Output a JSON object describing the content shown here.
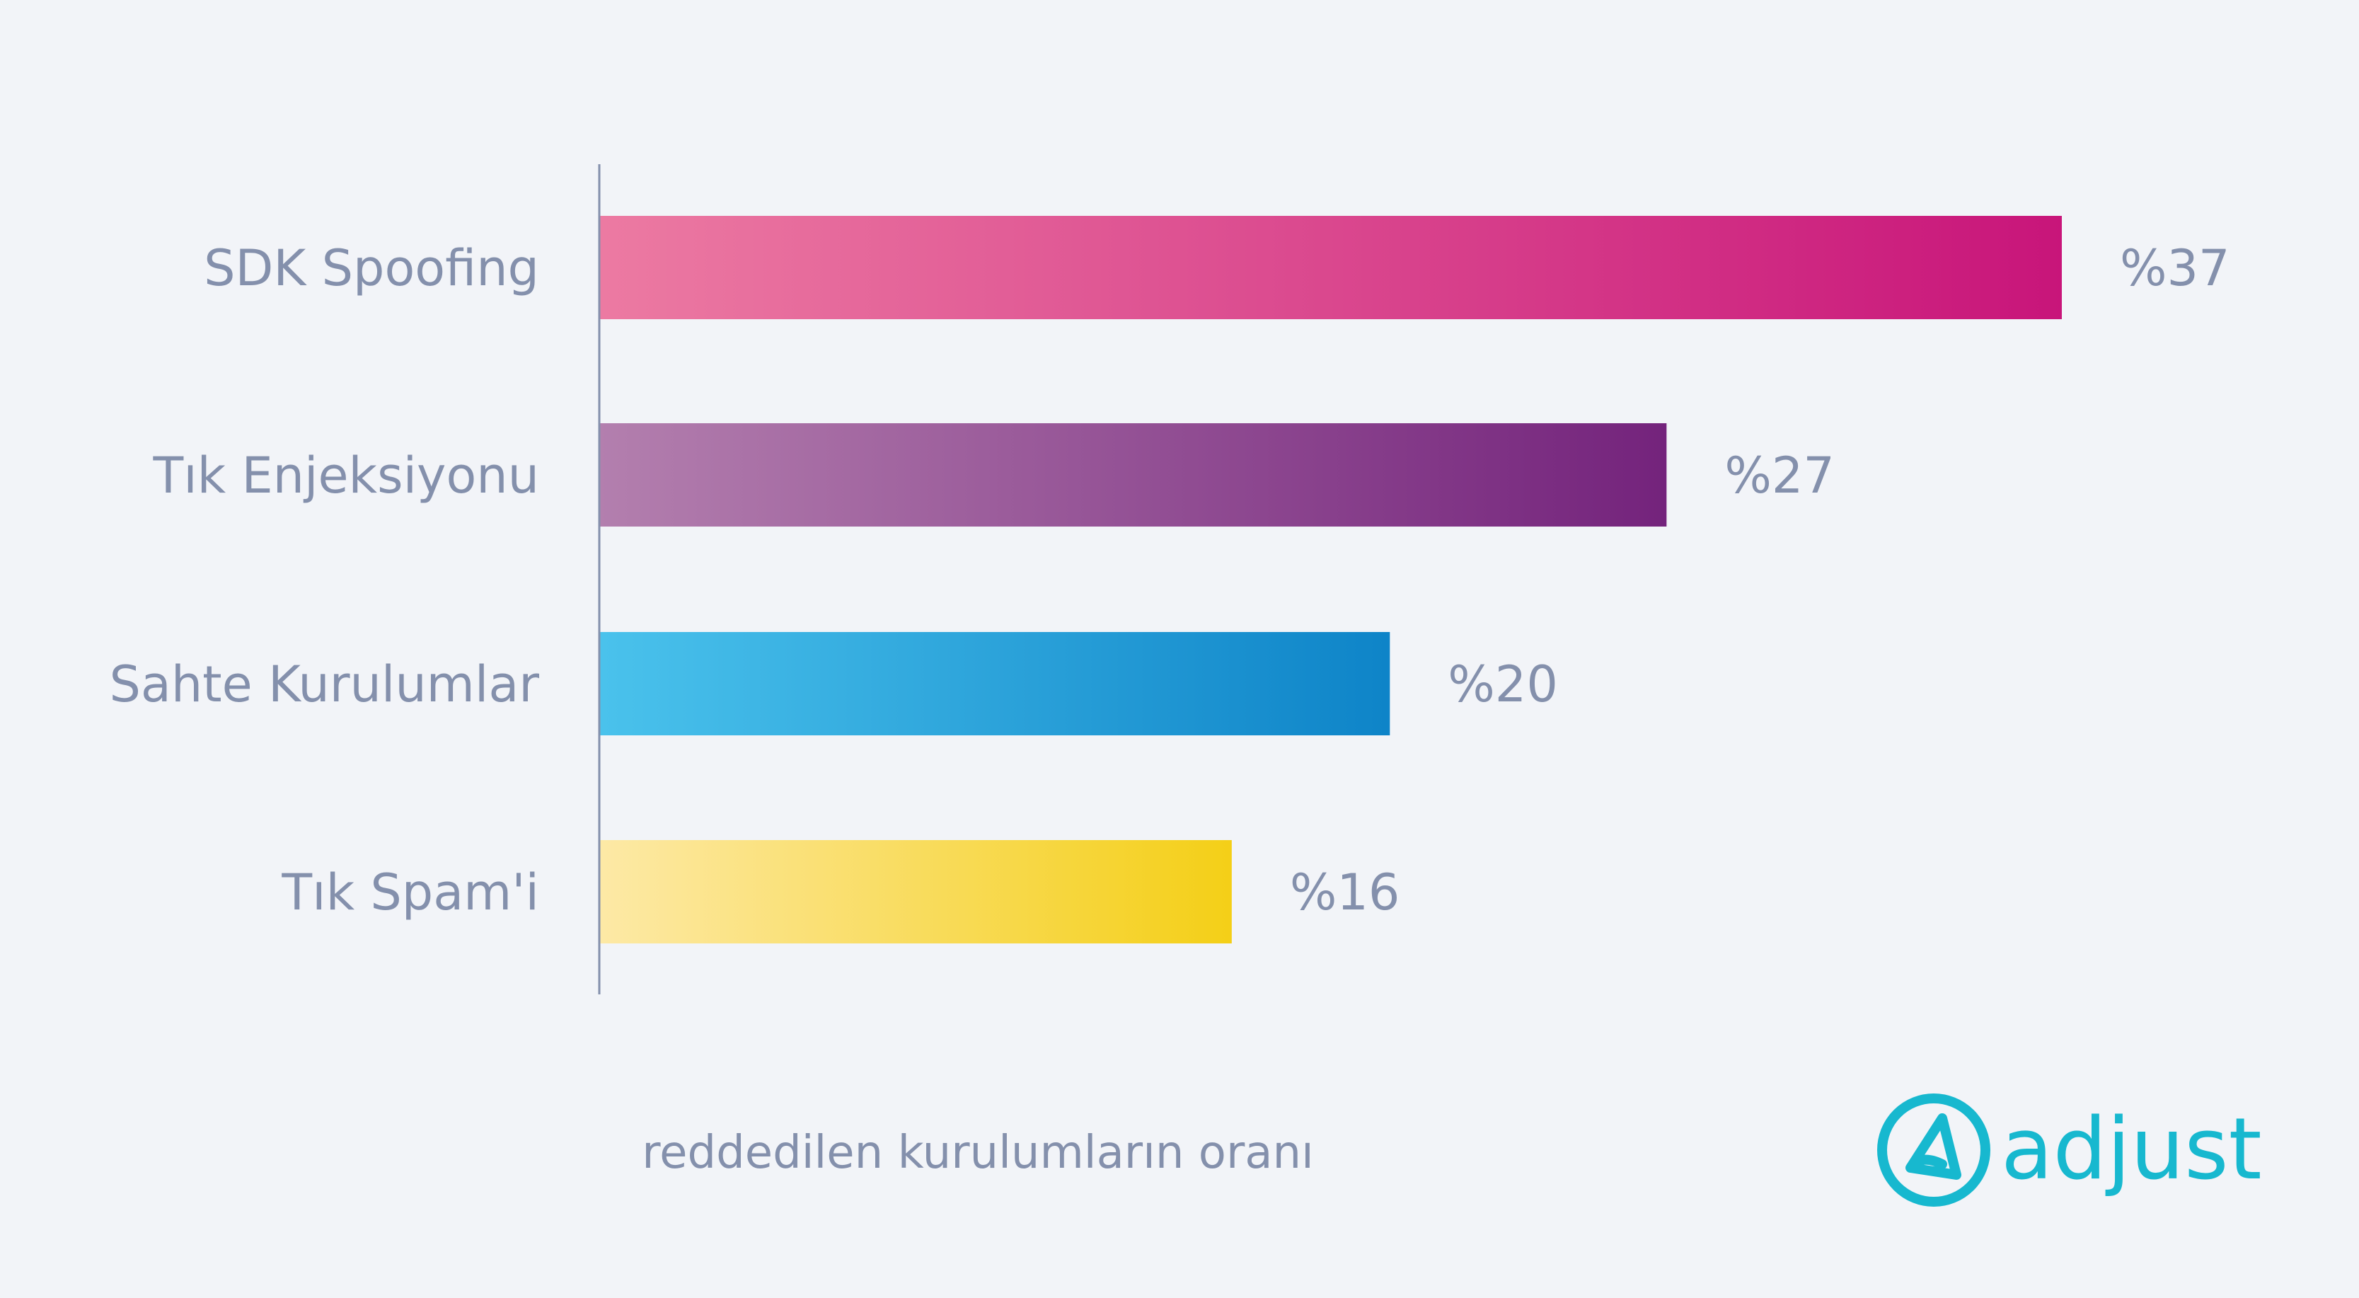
{
  "chart_data": {
    "type": "bar",
    "orientation": "horizontal",
    "categories": [
      "SDK Spoofing",
      "Tık Enjeksiyonu",
      "Sahte Kurulumlar",
      "Tık Spam'i"
    ],
    "values": [
      37,
      27,
      20,
      16
    ],
    "value_labels": [
      "%37",
      "%27",
      "%20",
      "%16"
    ],
    "bar_colors": [
      [
        "#ec7aa2",
        "#c8157a"
      ],
      [
        "#b37fae",
        "#74237c"
      ],
      [
        "#4ac2ec",
        "#0e84c8"
      ],
      [
        "#fde9a6",
        "#f4cf17"
      ]
    ],
    "xlabel": "reddedilen kurulumların oranı",
    "ylabel": "",
    "xlim": [
      0,
      37
    ],
    "grid": false,
    "legend": "none"
  },
  "branding": {
    "logo_text": "adjust",
    "color": "#17b8cf"
  }
}
